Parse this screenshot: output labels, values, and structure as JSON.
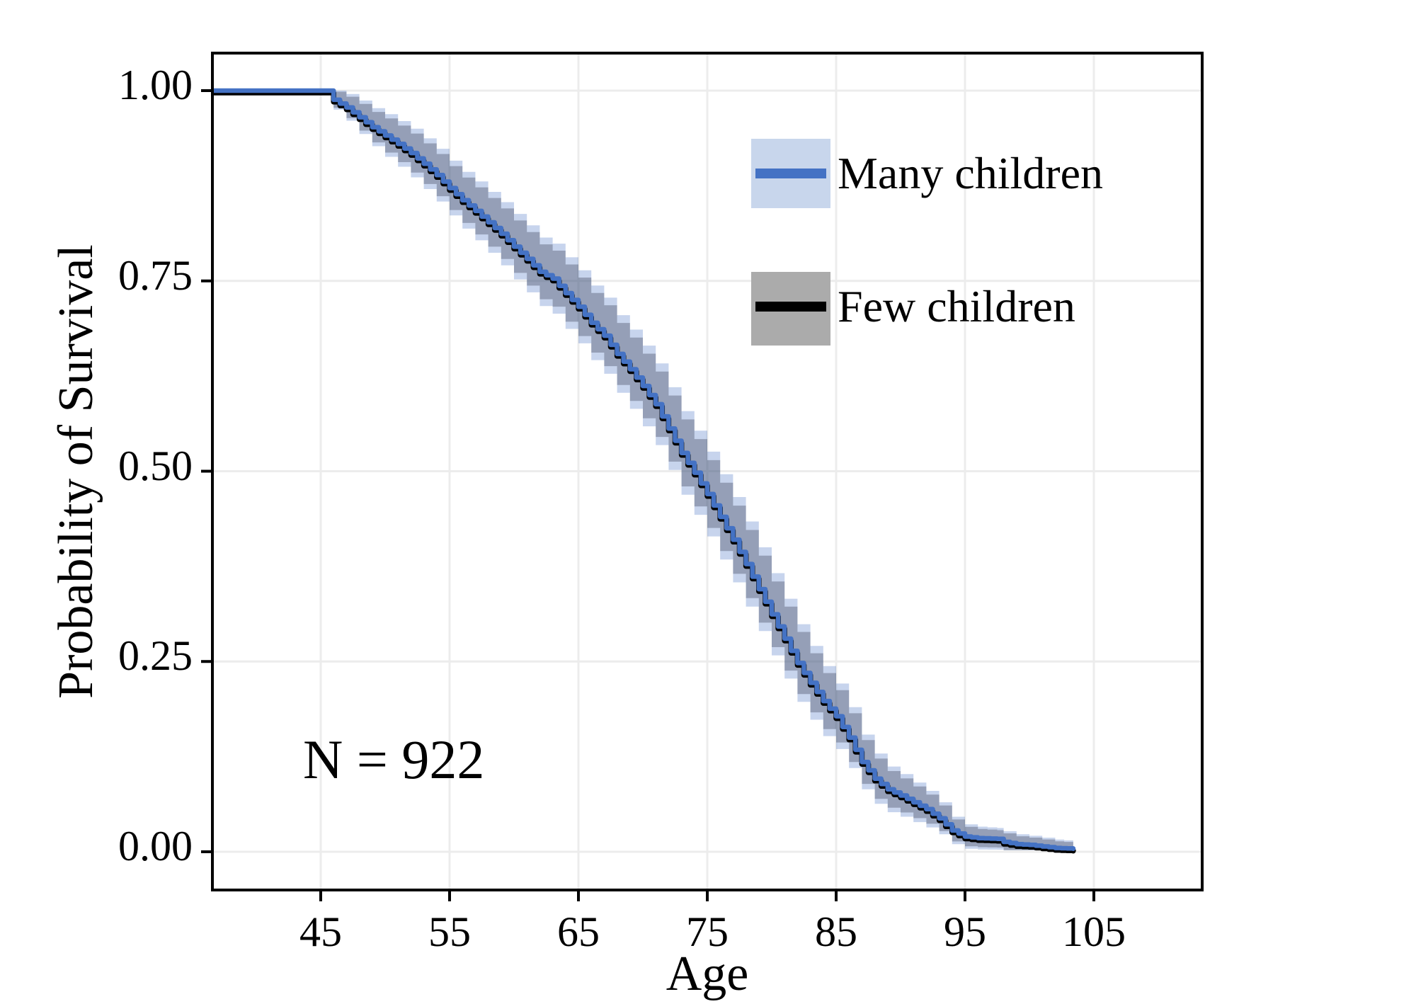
{
  "figure": {
    "background": "#ffffff",
    "annotation_n": "N = 922"
  },
  "legend": {
    "entries": [
      {
        "id": "many",
        "label": "Many children",
        "line_color": "#4472c4",
        "band_color": "#c8d6ec"
      },
      {
        "id": "few",
        "label": "Few children",
        "line_color": "#000000",
        "band_color": "#ababab"
      }
    ]
  },
  "chart_data": {
    "type": "line",
    "subtype": "kaplan-meier-survival-step",
    "title": "",
    "xlabel": "Age",
    "ylabel": "Probability of Survival",
    "x_ticks": [
      45,
      55,
      65,
      75,
      85,
      95,
      105
    ],
    "y_ticks": [
      "0.00",
      "0.25",
      "0.50",
      "0.75",
      "1.00"
    ],
    "y_tick_values": [
      0,
      0.25,
      0.5,
      0.75,
      1.0
    ],
    "xlim": [
      36.6,
      113.4
    ],
    "ylim": [
      -0.05,
      1.05
    ],
    "grid": true,
    "legend_position": "upper right",
    "annotation": "N = 922",
    "colors": {
      "line_blue": "#4472c4",
      "line_black": "#000000",
      "band_blue_fill": "rgba(68,114,196,0.30)",
      "band_gray_fill": "rgba(52,60,80,0.34)",
      "legend_blue_band": "#c8d6ec",
      "legend_gray_band": "#ababab",
      "gridline": "#ececec",
      "panel_border": "#000000"
    },
    "series": [
      {
        "name": "Many children",
        "color": "#4472c4",
        "points_ref": "km_points",
        "ci_ref": "ci_halfwidth"
      },
      {
        "name": "Few children",
        "color": "#000000",
        "points_ref": "km_points",
        "ci_ref": "ci_halfwidth",
        "note": "curve overlaps Many children, drawn beneath"
      }
    ],
    "km_points": [
      [
        36.6,
        1.0
      ],
      [
        45.3,
        1.0
      ],
      [
        46,
        0.988
      ],
      [
        47,
        0.978
      ],
      [
        48,
        0.965
      ],
      [
        49,
        0.952
      ],
      [
        50,
        0.941
      ],
      [
        51,
        0.93
      ],
      [
        52,
        0.918
      ],
      [
        53,
        0.904
      ],
      [
        54,
        0.889
      ],
      [
        55,
        0.872
      ],
      [
        56,
        0.856
      ],
      [
        57,
        0.842
      ],
      [
        58,
        0.827
      ],
      [
        59,
        0.812
      ],
      [
        60,
        0.795
      ],
      [
        61,
        0.779
      ],
      [
        62,
        0.762
      ],
      [
        63,
        0.753
      ],
      [
        64,
        0.734
      ],
      [
        65,
        0.716
      ],
      [
        66,
        0.695
      ],
      [
        67,
        0.678
      ],
      [
        68,
        0.654
      ],
      [
        69,
        0.634
      ],
      [
        70,
        0.612
      ],
      [
        71,
        0.588
      ],
      [
        72,
        0.556
      ],
      [
        73,
        0.524
      ],
      [
        74,
        0.498
      ],
      [
        75,
        0.47
      ],
      [
        76,
        0.44
      ],
      [
        77,
        0.41
      ],
      [
        78,
        0.378
      ],
      [
        79,
        0.345
      ],
      [
        80,
        0.312
      ],
      [
        81,
        0.28
      ],
      [
        82,
        0.248
      ],
      [
        83,
        0.222
      ],
      [
        84,
        0.198
      ],
      [
        85,
        0.178
      ],
      [
        86,
        0.15
      ],
      [
        87,
        0.118
      ],
      [
        88,
        0.096
      ],
      [
        89,
        0.082
      ],
      [
        90,
        0.074
      ],
      [
        91,
        0.065
      ],
      [
        92,
        0.056
      ],
      [
        93,
        0.044
      ],
      [
        94,
        0.028
      ],
      [
        95,
        0.02
      ],
      [
        96,
        0.018
      ],
      [
        97.5,
        0.017
      ],
      [
        98,
        0.013
      ],
      [
        99,
        0.01
      ],
      [
        100,
        0.009
      ],
      [
        101,
        0.007
      ],
      [
        102,
        0.005
      ],
      [
        103.4,
        0.004
      ]
    ],
    "ci_halfwidth": [
      [
        45.3,
        0.004
      ],
      [
        46,
        0.013
      ],
      [
        48,
        0.022
      ],
      [
        50,
        0.028
      ],
      [
        52,
        0.032
      ],
      [
        55,
        0.036
      ],
      [
        58,
        0.04
      ],
      [
        60,
        0.043
      ],
      [
        63,
        0.046
      ],
      [
        65,
        0.048
      ],
      [
        68,
        0.051
      ],
      [
        70,
        0.053
      ],
      [
        73,
        0.055
      ],
      [
        76,
        0.056
      ],
      [
        78,
        0.056
      ],
      [
        80,
        0.054
      ],
      [
        82,
        0.051
      ],
      [
        84,
        0.046
      ],
      [
        85,
        0.043
      ],
      [
        86,
        0.04
      ],
      [
        87,
        0.036
      ],
      [
        88,
        0.033
      ],
      [
        89,
        0.03
      ],
      [
        90,
        0.028
      ],
      [
        91,
        0.026
      ],
      [
        92,
        0.024
      ],
      [
        93,
        0.021
      ],
      [
        94,
        0.018
      ],
      [
        95,
        0.016
      ],
      [
        96,
        0.015
      ],
      [
        98,
        0.014
      ],
      [
        100,
        0.012
      ],
      [
        102,
        0.011
      ],
      [
        103.4,
        0.01
      ]
    ]
  }
}
